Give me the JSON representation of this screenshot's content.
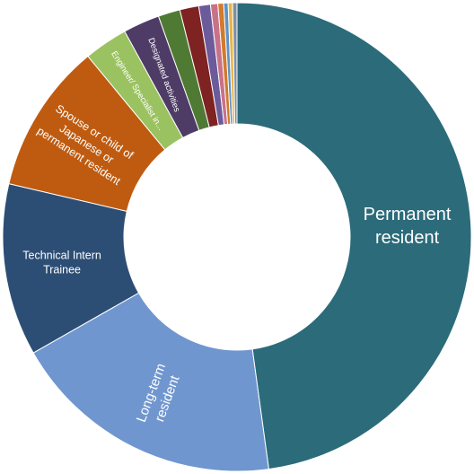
{
  "chart_data": {
    "type": "pie",
    "variant": "donut",
    "title": "",
    "legend": "none",
    "slices": [
      {
        "label": [
          "Permanent",
          "resident"
        ],
        "value": 47.5,
        "color": "#2b6b7a"
      },
      {
        "label": [
          "Long-term",
          "resident"
        ],
        "value": 18.8,
        "color": "#7096cf"
      },
      {
        "label": [
          "Technical Intern",
          "Trainee"
        ],
        "value": 11.8,
        "color": "#2d4e74"
      },
      {
        "label": [
          "Spouse or child of",
          "Japanese or",
          "permanent resident"
        ],
        "value": 10.3,
        "color": "#bf5b10"
      },
      {
        "label": [
          "Engineer/ Specialist in..."
        ],
        "value": 3.0,
        "color": "#9bc261"
      },
      {
        "label": [
          "Designated activities"
        ],
        "value": 2.5,
        "color": "#4e3b66"
      },
      {
        "label": [],
        "value": 1.5,
        "color": "#4f7a34"
      },
      {
        "label": [],
        "value": 1.3,
        "color": "#7e2222"
      },
      {
        "label": [],
        "value": 0.8,
        "color": "#6b5b9b"
      },
      {
        "label": [],
        "value": 0.5,
        "color": "#c8728a"
      },
      {
        "label": [],
        "value": 0.4,
        "color": "#d27a2e"
      },
      {
        "label": [],
        "value": 0.3,
        "color": "#5d93c5"
      },
      {
        "label": [],
        "value": 0.3,
        "color": "#e8b54a"
      },
      {
        "label": [],
        "value": 0.3,
        "color": "#7d8fa6"
      }
    ]
  }
}
